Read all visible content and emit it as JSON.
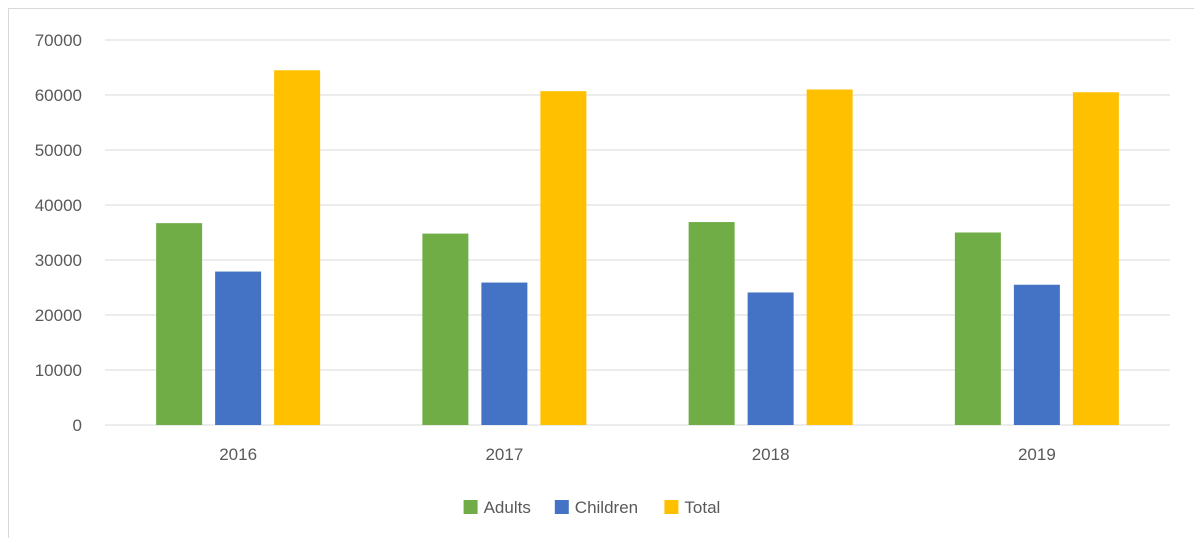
{
  "chart_data": {
    "type": "bar",
    "categories": [
      "2016",
      "2017",
      "2018",
      "2019"
    ],
    "series": [
      {
        "name": "Adults",
        "values": [
          36700,
          34800,
          36900,
          35000
        ],
        "color": "#70ad47"
      },
      {
        "name": "Children",
        "values": [
          27900,
          25900,
          24100,
          25500
        ],
        "color": "#4472c4"
      },
      {
        "name": "Total",
        "values": [
          64500,
          60700,
          61000,
          60500
        ],
        "color": "#ffc000"
      }
    ],
    "yticks": [
      "0",
      "10000",
      "20000",
      "30000",
      "40000",
      "50000",
      "60000",
      "70000"
    ],
    "ylim": [
      0,
      70000
    ],
    "grid": true,
    "legend": "bottom",
    "title": "",
    "xlabel": "",
    "ylabel": ""
  }
}
